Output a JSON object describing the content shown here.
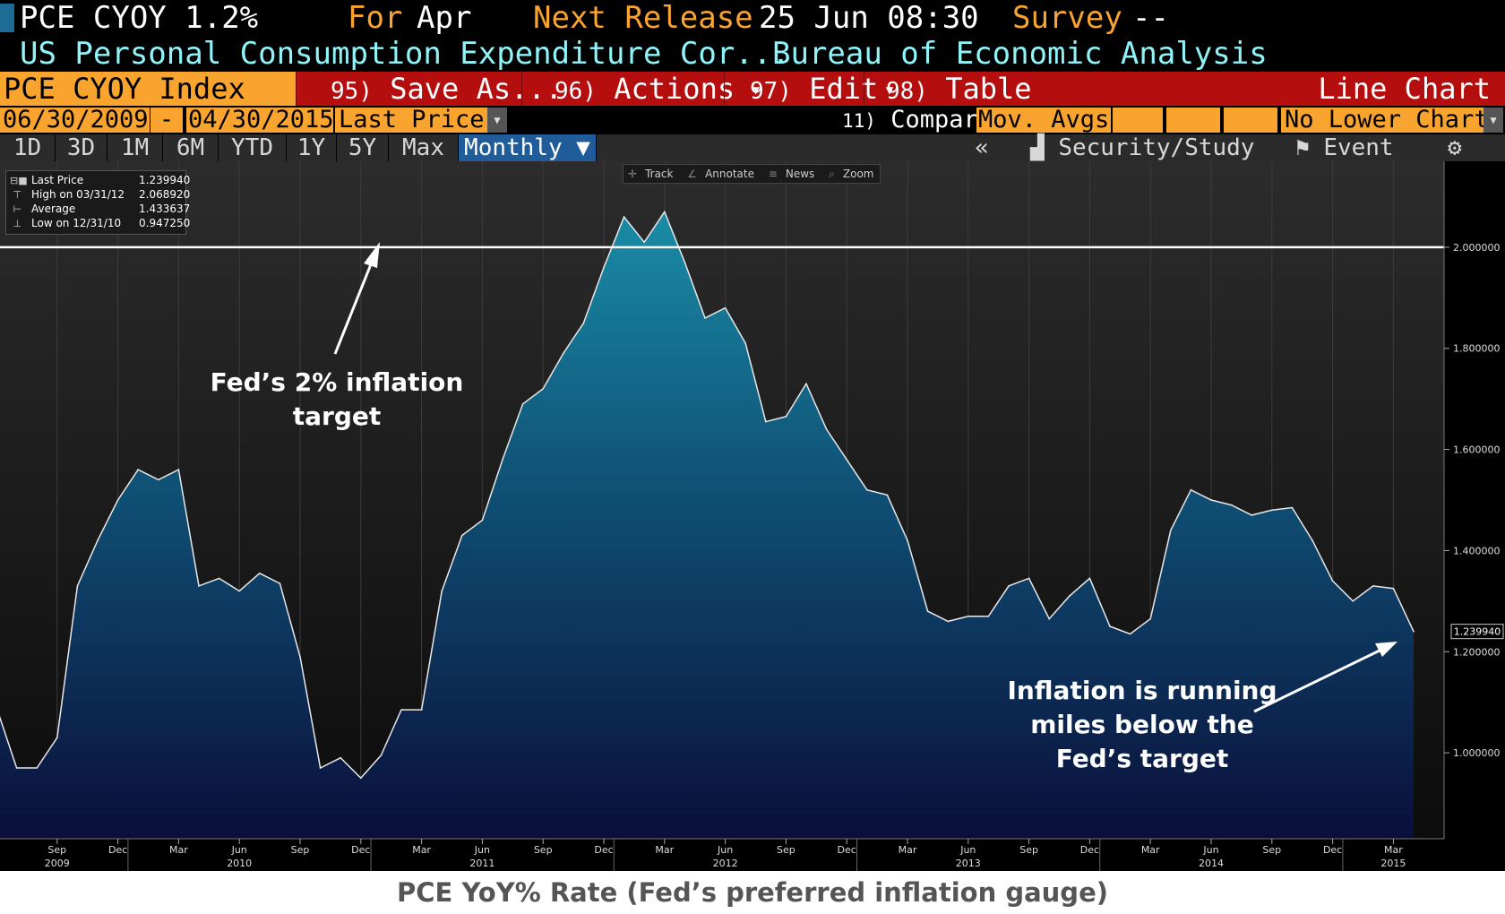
{
  "header": {
    "ticker": "PCE CYOY",
    "value": "1.2%",
    "for_label": "For",
    "for_value": "Apr",
    "next_release_label": "Next Release",
    "next_release_value": "25 Jun 08:30",
    "survey_label": "Survey",
    "survey_value": "--",
    "description": "US Personal Consumption Expenditure Cor...",
    "source": "Bureau of Economic Analysis"
  },
  "toolbar": {
    "security": "PCE CYOY Index",
    "items": [
      {
        "num": "95)",
        "label": "Save As..."
      },
      {
        "num": "96)",
        "label": "Actions"
      },
      {
        "num": "97)",
        "label": "Edit"
      },
      {
        "num": "98)",
        "label": "Table"
      }
    ],
    "chart_name": "Line Chart"
  },
  "daterow": {
    "start_date": "06/30/2009",
    "separator": "-",
    "end_date": "04/30/2015",
    "field": "Last Price",
    "compare_num": "11)",
    "compare_label": "Compare",
    "mov_avgs": "Mov. Avgs",
    "lower_chart": "No Lower Chart"
  },
  "periods": [
    "1D",
    "3D",
    "1M",
    "6M",
    "YTD",
    "1Y",
    "5Y",
    "Max"
  ],
  "frequency": "Monthly",
  "right_tools": {
    "collapse": "«",
    "security_study": "Security/Study",
    "event": "Event"
  },
  "chart_tools": [
    "Track",
    "Annotate",
    "News",
    "Zoom"
  ],
  "legend": [
    {
      "label": "Last Price",
      "value": "1.239940"
    },
    {
      "label": "High on 03/31/12",
      "value": "2.068920"
    },
    {
      "label": "Average",
      "value": "1.433637"
    },
    {
      "label": "Low on 12/31/10",
      "value": "0.947250"
    }
  ],
  "annotations": {
    "target": [
      "Fed’s 2% inflation",
      "target"
    ],
    "running": [
      "Inflation is running",
      "miles below the",
      "Fed’s target"
    ]
  },
  "caption": "PCE YoY% Rate (Fed’s preferred inflation gauge)",
  "colors": {
    "amber": "#f9a42e",
    "cyan_text": "#8ff3f8",
    "toolbar_red": "#b50e0e",
    "selected_blue": "#1f5c99",
    "area_top": "#1a8ca6",
    "area_bottom": "#0a0f3a"
  },
  "chart_data": {
    "type": "area",
    "x_start": "2009-06",
    "x": [
      "2009-06",
      "2009-07",
      "2009-08",
      "2009-09",
      "2009-10",
      "2009-11",
      "2009-12",
      "2010-01",
      "2010-02",
      "2010-03",
      "2010-04",
      "2010-05",
      "2010-06",
      "2010-07",
      "2010-08",
      "2010-09",
      "2010-10",
      "2010-11",
      "2010-12",
      "2011-01",
      "2011-02",
      "2011-03",
      "2011-04",
      "2011-05",
      "2011-06",
      "2011-07",
      "2011-08",
      "2011-09",
      "2011-10",
      "2011-11",
      "2011-12",
      "2012-01",
      "2012-02",
      "2012-03",
      "2012-04",
      "2012-05",
      "2012-06",
      "2012-07",
      "2012-08",
      "2012-09",
      "2012-10",
      "2012-11",
      "2012-12",
      "2013-01",
      "2013-02",
      "2013-03",
      "2013-04",
      "2013-05",
      "2013-06",
      "2013-07",
      "2013-08",
      "2013-09",
      "2013-10",
      "2013-11",
      "2013-12",
      "2014-01",
      "2014-02",
      "2014-03",
      "2014-04",
      "2014-05",
      "2014-06",
      "2014-07",
      "2014-08",
      "2014-09",
      "2014-10",
      "2014-11",
      "2014-12",
      "2015-01",
      "2015-02",
      "2015-03",
      "2015-04"
    ],
    "values": [
      1.09,
      0.97,
      0.97,
      1.03,
      1.33,
      1.42,
      1.5,
      1.56,
      1.54,
      1.56,
      1.33,
      1.345,
      1.32,
      1.355,
      1.335,
      1.19,
      0.97,
      0.99,
      0.95,
      0.995,
      1.085,
      1.085,
      1.32,
      1.43,
      1.46,
      1.58,
      1.69,
      1.72,
      1.79,
      1.85,
      1.96,
      2.06,
      2.01,
      2.07,
      1.97,
      1.86,
      1.88,
      1.81,
      1.655,
      1.665,
      1.73,
      1.64,
      1.58,
      1.52,
      1.51,
      1.42,
      1.28,
      1.26,
      1.27,
      1.27,
      1.33,
      1.345,
      1.265,
      1.31,
      1.345,
      1.25,
      1.235,
      1.265,
      1.44,
      1.52,
      1.5,
      1.49,
      1.47,
      1.48,
      1.485,
      1.42,
      1.34,
      1.3,
      1.33,
      1.325,
      1.24
    ],
    "reference_line": 2.0,
    "ylim": [
      0.83,
      2.17
    ],
    "yticks": [
      "1.000000",
      "1.200000",
      "1.400000",
      "1.600000",
      "1.800000",
      "2.000000"
    ],
    "ytick_values": [
      1.0,
      1.2,
      1.4,
      1.6,
      1.8,
      2.0
    ],
    "last_value_label": "1.239940",
    "month_labels": [
      "Sep",
      "Dec",
      "Mar",
      "Jun",
      "Sep",
      "Dec",
      "Mar",
      "Jun",
      "Sep",
      "Dec",
      "Mar",
      "Jun",
      "Sep",
      "Dec",
      "Mar",
      "Jun",
      "Sep",
      "Dec",
      "Mar",
      "Jun",
      "Sep",
      "Dec",
      "Mar"
    ],
    "month_label_dates": [
      "2009-09",
      "2009-12",
      "2010-03",
      "2010-06",
      "2010-09",
      "2010-12",
      "2011-03",
      "2011-06",
      "2011-09",
      "2011-12",
      "2012-03",
      "2012-06",
      "2012-09",
      "2012-12",
      "2013-03",
      "2013-06",
      "2013-09",
      "2013-12",
      "2014-03",
      "2014-06",
      "2014-09",
      "2014-12",
      "2015-03"
    ],
    "year_labels": [
      "2009",
      "2010",
      "2011",
      "2012",
      "2013",
      "2014",
      "2015"
    ],
    "year_label_dates": [
      "2009-09",
      "2010-06",
      "2011-06",
      "2012-06",
      "2013-06",
      "2014-06",
      "2015-03"
    ],
    "grid": true
  }
}
